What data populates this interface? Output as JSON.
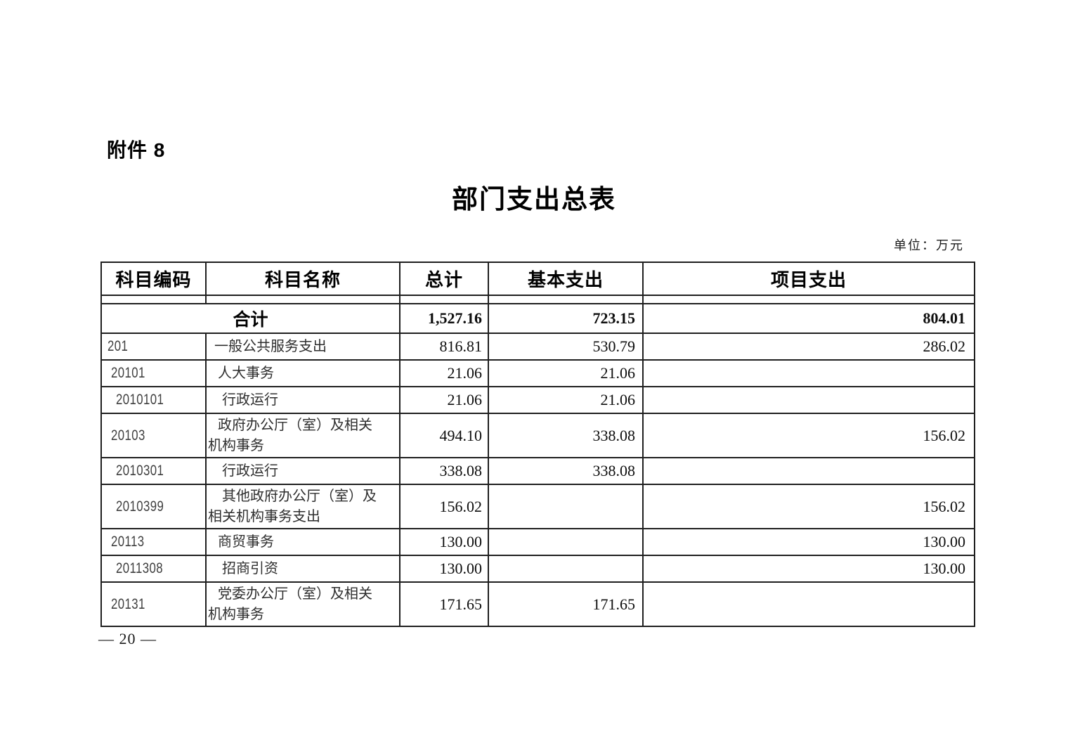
{
  "page": {
    "attachment_label": "附件 8",
    "title": "部门支出总表",
    "unit_note": "单位：万元",
    "page_number": "— 20 —"
  },
  "table": {
    "columns": [
      "科目编码",
      "科目名称",
      "总计",
      "基本支出",
      "项目支出"
    ],
    "total_row": {
      "label": "合计",
      "total": "1,527.16",
      "basic": "723.15",
      "project": "804.01"
    },
    "rows": [
      {
        "code": "201",
        "name": "一般公共服务支出",
        "total": "816.81",
        "basic": "530.79",
        "project": "286.02",
        "level": 0
      },
      {
        "code": "20101",
        "name": "人大事务",
        "total": "21.06",
        "basic": "21.06",
        "project": "",
        "level": 1
      },
      {
        "code": "2010101",
        "name": "行政运行",
        "total": "21.06",
        "basic": "21.06",
        "project": "",
        "level": 2
      },
      {
        "code": "20103",
        "name": "政府办公厅（室）及相关\n机构事务",
        "total": "494.10",
        "basic": "338.08",
        "project": "156.02",
        "level": 1
      },
      {
        "code": "2010301",
        "name": "行政运行",
        "total": "338.08",
        "basic": "338.08",
        "project": "",
        "level": 2
      },
      {
        "code": "2010399",
        "name": "其他政府办公厅（室）及\n相关机构事务支出",
        "total": "156.02",
        "basic": "",
        "project": "156.02",
        "level": 2
      },
      {
        "code": "20113",
        "name": "商贸事务",
        "total": "130.00",
        "basic": "",
        "project": "130.00",
        "level": 1
      },
      {
        "code": "2011308",
        "name": "招商引资",
        "total": "130.00",
        "basic": "",
        "project": "130.00",
        "level": 2
      },
      {
        "code": "20131",
        "name": "党委办公厅（室）及相关\n机构事务",
        "total": "171.65",
        "basic": "171.65",
        "project": "",
        "level": 1
      }
    ]
  }
}
